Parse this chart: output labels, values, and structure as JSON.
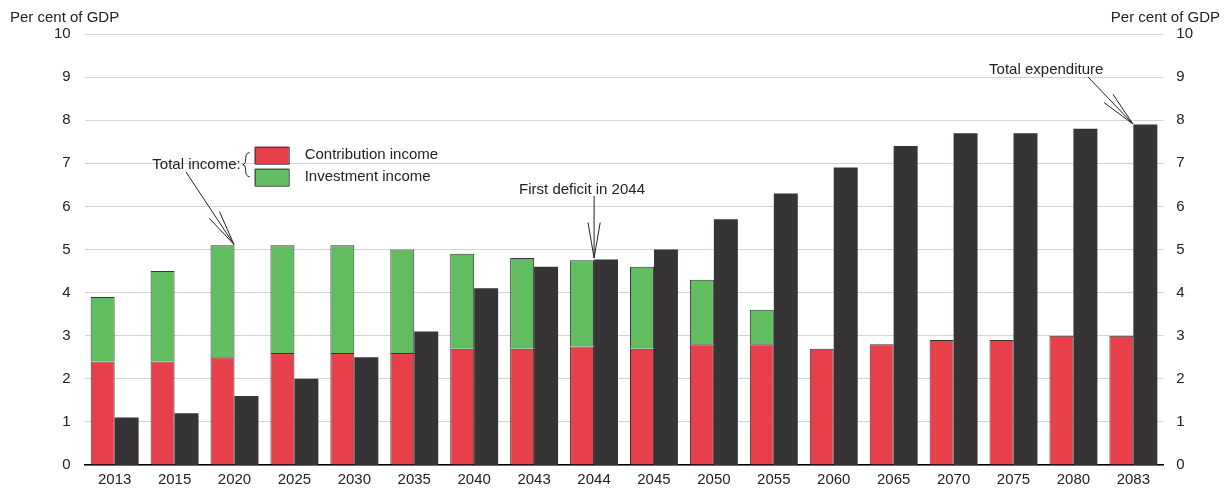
{
  "chart_data": {
    "type": "bar",
    "stacked": true,
    "ylabel": "Per cent of GDP",
    "y2label": "Per cent of GDP",
    "categories": [
      "2013",
      "2015",
      "2020",
      "2025",
      "2030",
      "2035",
      "2040",
      "2043",
      "2044",
      "2045",
      "2050",
      "2055",
      "2060",
      "2065",
      "2070",
      "2075",
      "2080",
      "2083"
    ],
    "series": [
      {
        "name": "Contribution income",
        "color": "#e8404a",
        "values": [
          2.4,
          2.4,
          2.5,
          2.6,
          2.6,
          2.6,
          2.7,
          2.7,
          2.75,
          2.7,
          2.8,
          2.8,
          2.7,
          2.8,
          2.9,
          2.9,
          3.0,
          3.0
        ]
      },
      {
        "name": "Investment income",
        "color": "#61bd5f",
        "values": [
          1.5,
          2.1,
          2.6,
          2.5,
          2.5,
          2.4,
          2.2,
          2.1,
          2.0,
          1.9,
          1.5,
          0.8,
          null,
          null,
          null,
          null,
          null,
          null
        ]
      },
      {
        "color": "#363435",
        "axis": "y2",
        "values": [
          1.1,
          1.2,
          1.6,
          2.0,
          2.5,
          3.1,
          4.1,
          4.6,
          4.77,
          5.0,
          5.7,
          6.3,
          6.9,
          7.4,
          7.7,
          7.7,
          7.8,
          7.9
        ]
      }
    ],
    "ylim": [
      0,
      10
    ],
    "yticks": [
      0,
      1,
      2,
      3,
      4,
      5,
      6,
      7,
      8,
      9,
      10
    ],
    "y2lim": [
      0,
      10
    ],
    "y2ticks": [
      0,
      1,
      2,
      3,
      4,
      5,
      6,
      7,
      8,
      9,
      10
    ],
    "grid": "y",
    "legend": "top left",
    "annotations": [
      {
        "text": "Total income:",
        "x": "2020",
        "y": 5.1
      },
      {
        "text": "First deficit in 2044",
        "x": "2044",
        "y": 4.77
      },
      {
        "text": "Total expenditure",
        "x": "2083",
        "y": 7.9
      }
    ]
  }
}
